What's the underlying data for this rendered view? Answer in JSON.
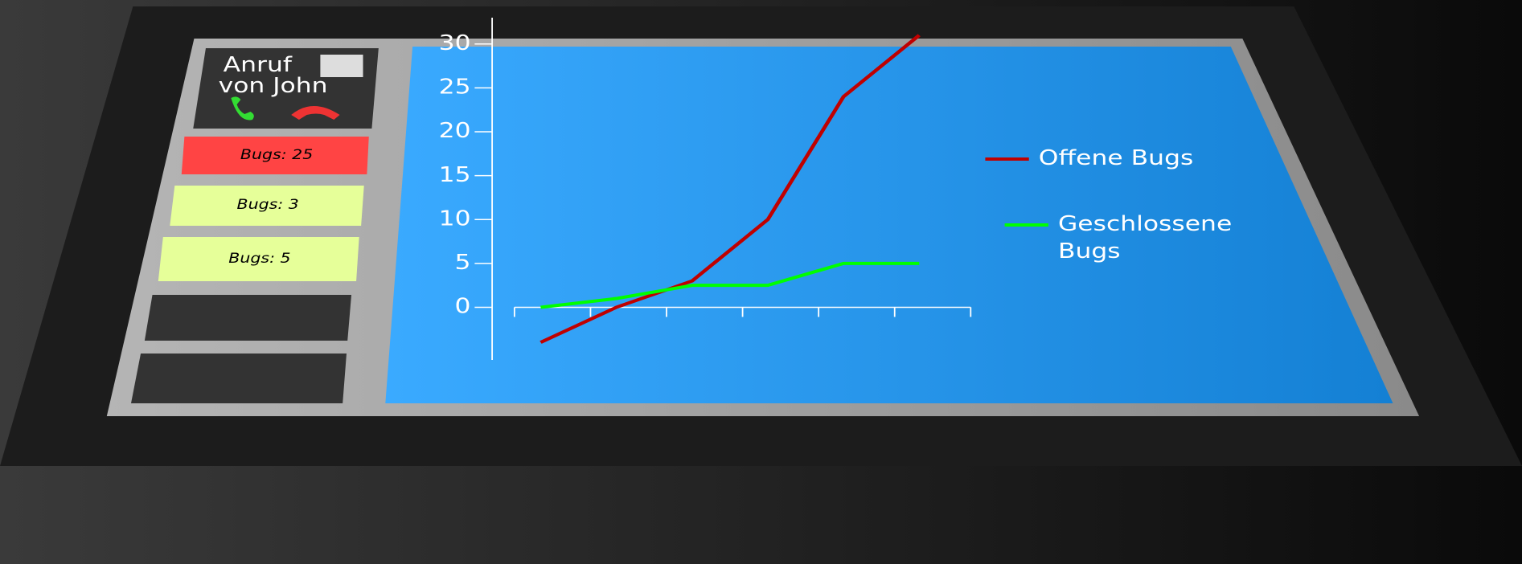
{
  "sidebar": {
    "call": {
      "line1": "Anruf",
      "line2": "von John"
    },
    "cards": [
      "Bugs: 25",
      "Bugs: 3",
      "Bugs: 5"
    ]
  },
  "chart_data": {
    "type": "line",
    "categories": [
      null,
      null,
      null,
      null,
      null,
      null
    ],
    "series": [
      {
        "name": "Offene Bugs",
        "color": "#c00000",
        "values": [
          -4,
          0,
          3,
          10,
          24,
          31
        ]
      },
      {
        "name": "Geschlossene Bugs",
        "color": "#00ff00",
        "values": [
          0,
          1,
          2.5,
          2.5,
          5,
          5
        ]
      }
    ],
    "ylim": [
      -6,
      33
    ],
    "yticks": [
      0,
      5,
      10,
      15,
      20,
      25,
      30
    ],
    "legend": "right"
  }
}
